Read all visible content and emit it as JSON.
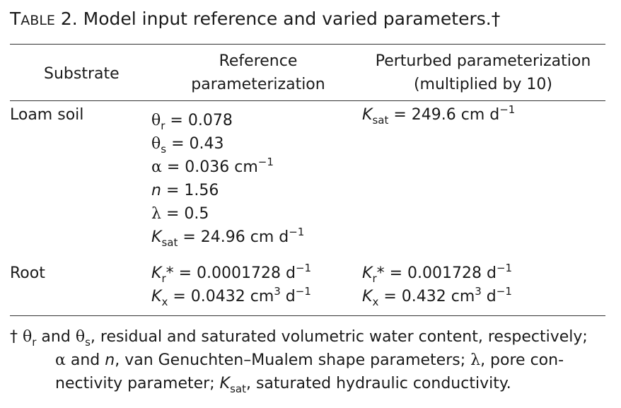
{
  "title": {
    "table_label_first": "T",
    "table_label_rest": "ABLE",
    "number": "2.",
    "text": "Model input reference and varied parameters.",
    "dagger": "†"
  },
  "columns": {
    "substrate": "Substrate",
    "reference_line1": "Reference",
    "reference_line2": "parameterization",
    "perturbed_line1": "Perturbed parameterization",
    "perturbed_line2": "(multiplied by 10)"
  },
  "rows": {
    "loam": {
      "substrate": "Loam soil",
      "reference": {
        "theta_r_sym": "θ",
        "theta_r_sub": "r",
        "theta_r_val": " = 0.078",
        "theta_s_sym": "θ",
        "theta_s_sub": "s",
        "theta_s_val": " = 0.43",
        "alpha_sym": "α",
        "alpha_val": " = 0.036 cm",
        "alpha_exp": "−1",
        "n_sym": "n",
        "n_val": " = 1.56",
        "lambda_sym": "λ",
        "lambda_val": " = 0.5",
        "ksat_sym": "K",
        "ksat_sub": "sat",
        "ksat_val": " = 24.96 cm d",
        "ksat_exp": "−1"
      },
      "perturbed": {
        "ksat_sym": "K",
        "ksat_sub": "sat",
        "ksat_val": " = 249.6 cm d",
        "ksat_exp": "−1"
      }
    },
    "root": {
      "substrate": "Root",
      "reference": {
        "kr_sym": "K",
        "kr_sub": "r",
        "kr_val": "* = 0.0001728 d",
        "kr_exp": "−1",
        "kx_sym": "K",
        "kx_sub": "x",
        "kx_val": " = 0.0432 cm",
        "kx_exp1": "3",
        "kx_unit2": " d",
        "kx_exp2": "−1"
      },
      "perturbed": {
        "kr_sym": "K",
        "kr_sub": "r",
        "kr_val": "* = 0.001728 d",
        "kr_exp": "−1",
        "kx_sym": "K",
        "kx_sub": "x",
        "kx_val": " = 0.432 cm",
        "kx_exp1": "3",
        "kx_unit2": " d",
        "kx_exp2": "−1"
      }
    }
  },
  "footnote": {
    "dagger": "†",
    "l1_theta": "θ",
    "l1_r": "r",
    "l1_and": " and ",
    "l1_theta2": "θ",
    "l1_s": "s",
    "l1_rest": ", residual and saturated volumetric water content, respectively;",
    "l2_alpha": "α",
    "l2_and": " and ",
    "l2_n": "n",
    "l2_rest": ", van Genuchten–Mualem shape parameters; ",
    "l2_lambda": "λ",
    "l2_end": ", pore con-",
    "l3_start": "nectivity parameter; ",
    "l3_k": "K",
    "l3_sat": "sat",
    "l3_rest": ", saturated hydraulic conductivity."
  }
}
